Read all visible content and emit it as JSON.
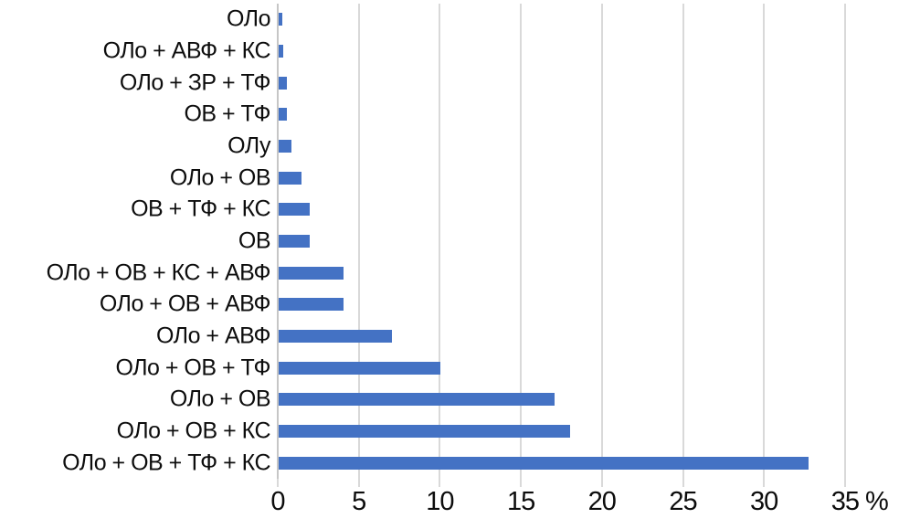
{
  "chart_data": {
    "type": "bar",
    "orientation": "horizontal",
    "title": "",
    "categories": [
      "ОЛо",
      "ОЛо + АВФ + КС",
      "ОЛо + ЗР + ТФ",
      "ОВ + ТФ",
      "ОЛу",
      "ОЛо + ОВ",
      "ОВ + ТФ + КС",
      "ОВ",
      "ОЛо + ОВ + КС + АВФ",
      "ОЛо + ОВ + АВФ",
      "ОЛо + АВФ",
      "ОЛо + ОВ + ТФ",
      "ОЛо + ОВ",
      "ОЛо + ОВ + КС",
      "ОЛо + ОВ + ТФ + КС"
    ],
    "values": [
      0.2,
      0.3,
      0.5,
      0.5,
      0.8,
      1.4,
      1.9,
      1.9,
      4.0,
      4.0,
      7.0,
      10.0,
      17.0,
      18.0,
      32.7
    ],
    "x_ticks": [
      0,
      5,
      10,
      15,
      20,
      25,
      30,
      35
    ],
    "x_axis_unit_label": "%",
    "xlim": [
      0,
      38.3
    ],
    "grid": "vertical-only",
    "legend": "none",
    "bar_color": "#4472C4",
    "gridline_color": "#D9D9D9",
    "axis_line_color": "#C6C6C6",
    "text_color": "#0D0D0D"
  }
}
